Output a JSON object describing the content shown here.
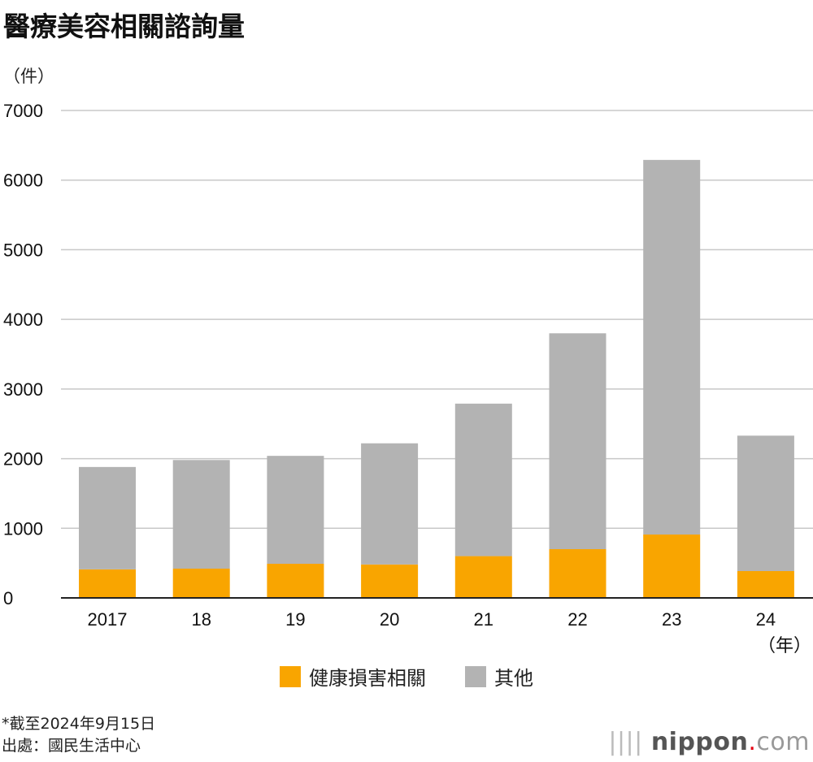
{
  "chart_data": {
    "type": "bar",
    "stacked": true,
    "title": "醫療美容相關諮詢量",
    "ylabel": "（件）",
    "xlabel": "（年）",
    "categories": [
      "2017",
      "18",
      "19",
      "20",
      "21",
      "22",
      "23",
      "24"
    ],
    "series": [
      {
        "name": "健康損害相關",
        "color": "#f9a500",
        "values": [
          410,
          420,
          490,
          480,
          600,
          700,
          910,
          385
        ]
      },
      {
        "name": "其他",
        "color": "#b3b3b3",
        "values": [
          1470,
          1560,
          1550,
          1740,
          2190,
          3100,
          5380,
          1945
        ]
      }
    ],
    "ylim": [
      0,
      7000
    ],
    "yticks": [
      0,
      1000,
      2000,
      3000,
      4000,
      5000,
      6000,
      7000
    ],
    "grid": true,
    "legend_position": "bottom"
  },
  "notes": {
    "footnote": "*截至2024年9月15日",
    "source": "出處：國民生活中心"
  },
  "logo": {
    "name": "nippon",
    "dot": ".",
    "suffix": "com"
  }
}
